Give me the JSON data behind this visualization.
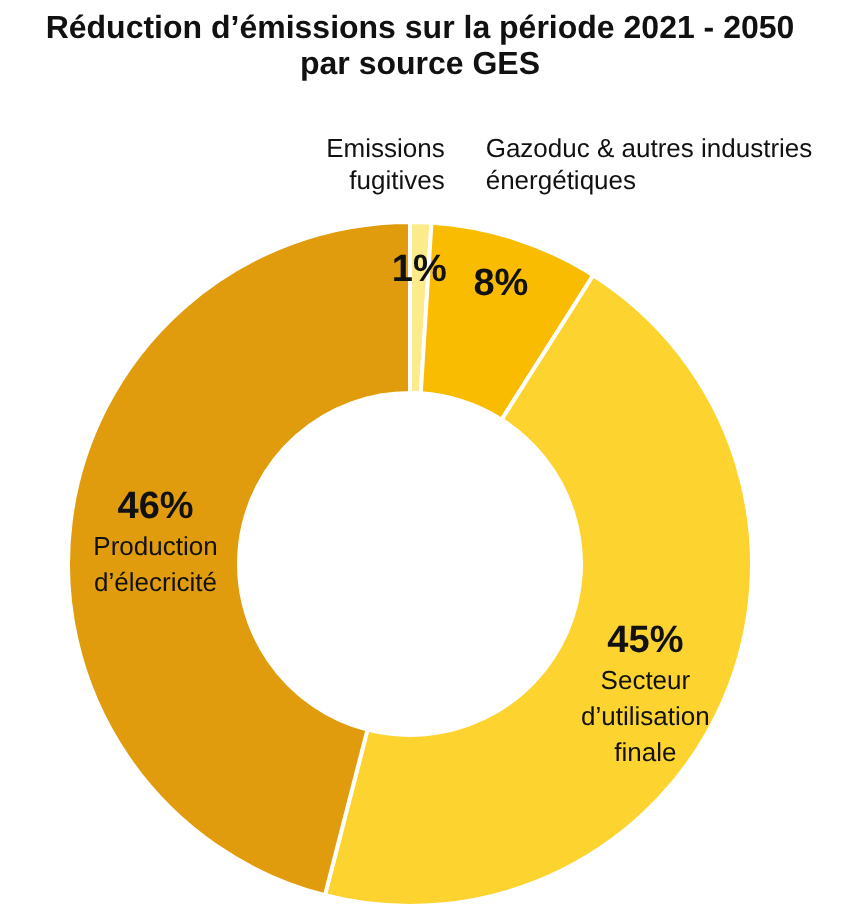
{
  "chart_data": {
    "type": "donut",
    "title": "Réduction d’émissions sur la période 2021 - 2050 par source GES",
    "categories": [
      "Emissions fugitives",
      "Gazoduc & autres industries énergétiques",
      "Secteur d’utilisation finale",
      "Production d’élecricité"
    ],
    "values": [
      1,
      8,
      45,
      46
    ],
    "value_labels": [
      "1%",
      "8%",
      "45%",
      "46%"
    ],
    "colors": [
      "#fbeb8a",
      "#f9bc00",
      "#fdd330",
      "#e09c0c"
    ],
    "legend": false
  }
}
